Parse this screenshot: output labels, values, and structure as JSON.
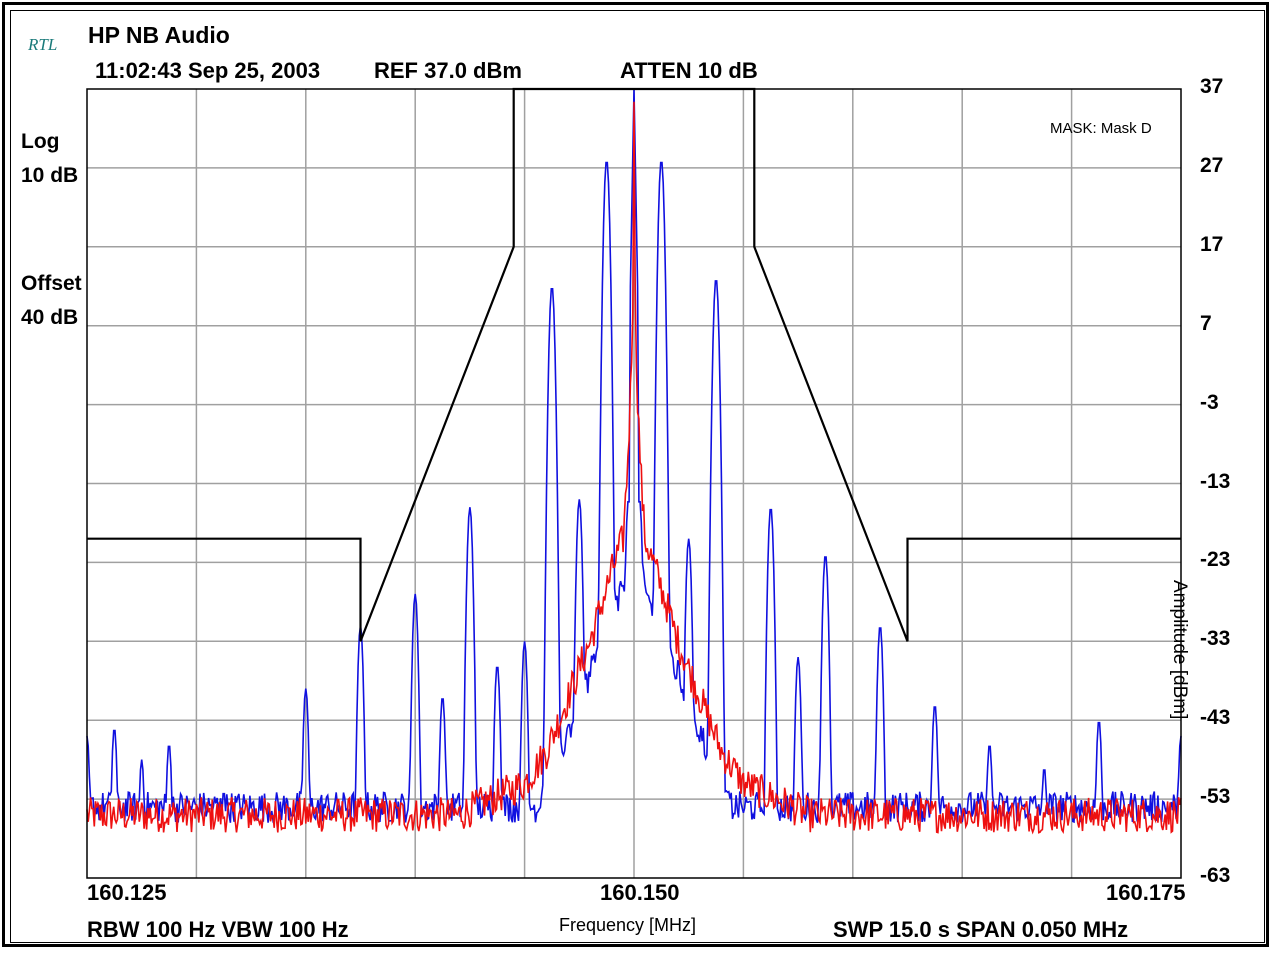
{
  "header": {
    "brand": "RTL",
    "title": "HP NB Audio",
    "timestamp": "11:02:43 Sep 25, 2003",
    "ref": "REF 37.0 dBm",
    "atten": "ATTEN 10  dB"
  },
  "left_panel": {
    "scale_mode": "Log",
    "scale_div": "10 dB",
    "offset_label": "Offset",
    "offset_value": "40 dB"
  },
  "footer": {
    "rbw_vbw": "RBW 100 Hz  VBW 100 Hz",
    "sweep_span": "SWP 15.0 s  SPAN 0.050 MHz"
  },
  "colors": {
    "trace_max": "#1010e0",
    "trace_avg": "#ee1010",
    "mask": "#000000",
    "grid": "#a0a0a0"
  },
  "chart_data": {
    "type": "line",
    "annotation": "MASK: Mask D",
    "xlabel": "Frequency [MHz]",
    "ylabel": "Amplitude [dBm]",
    "xlim": [
      160.125,
      160.175
    ],
    "ylim": [
      -63,
      37
    ],
    "x_tick_labels": [
      {
        "value": 160.125,
        "label": "160.125"
      },
      {
        "value": 160.15,
        "label": "160.150"
      },
      {
        "value": 160.175,
        "label": "160.175"
      }
    ],
    "y_ticks": [
      37,
      27,
      17,
      7,
      -3,
      -13,
      -23,
      -33,
      -43,
      -53,
      -63
    ],
    "grid": true,
    "series": [
      {
        "name": "mask",
        "points": [
          [
            160.125,
            -20
          ],
          [
            160.1375,
            -20
          ],
          [
            160.1375,
            -33
          ],
          [
            160.1445,
            17
          ],
          [
            160.1445,
            37
          ],
          [
            160.1555,
            37
          ],
          [
            160.1555,
            17
          ],
          [
            160.1625,
            -33
          ],
          [
            160.1625,
            -20
          ],
          [
            160.175,
            -20
          ]
        ]
      },
      {
        "name": "max-hold",
        "noise_floor": -54,
        "peaks": [
          {
            "x": 160.125,
            "y": -45
          },
          {
            "x": 160.12625,
            "y": -44
          },
          {
            "x": 160.1275,
            "y": -48
          },
          {
            "x": 160.12875,
            "y": -46
          },
          {
            "x": 160.13125,
            "y": -52
          },
          {
            "x": 160.135,
            "y": -39
          },
          {
            "x": 160.1375,
            "y": -31
          },
          {
            "x": 160.14,
            "y": -27
          },
          {
            "x": 160.14125,
            "y": -40
          },
          {
            "x": 160.1425,
            "y": -16
          },
          {
            "x": 160.14375,
            "y": -36
          },
          {
            "x": 160.145,
            "y": -33
          },
          {
            "x": 160.14625,
            "y": 12
          },
          {
            "x": 160.1475,
            "y": -15
          },
          {
            "x": 160.14875,
            "y": 28
          },
          {
            "x": 160.14975,
            "y": -15
          },
          {
            "x": 160.15025,
            "y": -15
          },
          {
            "x": 160.15125,
            "y": 28
          },
          {
            "x": 160.1525,
            "y": -20
          },
          {
            "x": 160.15375,
            "y": 13
          },
          {
            "x": 160.15625,
            "y": -16
          },
          {
            "x": 160.1575,
            "y": -35
          },
          {
            "x": 160.15875,
            "y": -22
          },
          {
            "x": 160.16125,
            "y": -31
          },
          {
            "x": 160.16375,
            "y": -41
          },
          {
            "x": 160.16625,
            "y": -46
          },
          {
            "x": 160.16875,
            "y": -49
          },
          {
            "x": 160.17125,
            "y": -43
          },
          {
            "x": 160.175,
            "y": -45
          }
        ]
      },
      {
        "name": "average",
        "noise_floor": -55,
        "center": 160.15,
        "peak": 37,
        "shoulder_points": [
          [
            0.0,
            37
          ],
          [
            0.0005,
            -20
          ],
          [
            0.001,
            -24
          ],
          [
            0.002,
            -33
          ],
          [
            0.003,
            -40
          ],
          [
            0.004,
            -47
          ],
          [
            0.005,
            -51
          ],
          [
            0.0065,
            -53
          ],
          [
            0.008,
            -55
          ]
        ]
      }
    ]
  }
}
